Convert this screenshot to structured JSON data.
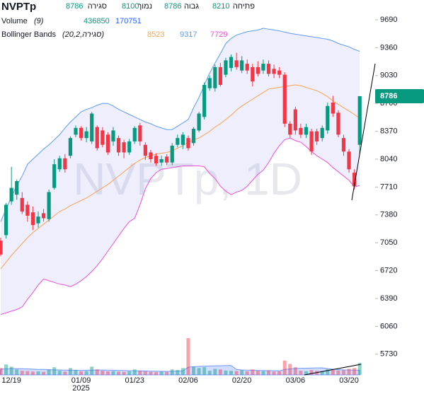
{
  "chart_data": {
    "type": "candlestick",
    "symbol": "NVPTp",
    "watermark": "NVPTp, 1D",
    "ohlc_labels": {
      "open": "פתיחה",
      "high": "גבוה",
      "low": "נמוך",
      "close": "סגירה"
    },
    "categories": [
      null,
      null,
      "12/19",
      null,
      null,
      null,
      null,
      null,
      null,
      null,
      null,
      null,
      null,
      null,
      null,
      "01/09",
      null,
      null,
      null,
      null,
      null,
      null,
      null,
      null,
      null,
      "01/23",
      null,
      null,
      null,
      null,
      null,
      null,
      null,
      null,
      null,
      "02/06",
      null,
      null,
      null,
      null,
      null,
      null,
      null,
      null,
      null,
      "02/20",
      null,
      null,
      null,
      null,
      null,
      null,
      null,
      null,
      null,
      "03/06",
      null,
      null,
      null,
      null,
      null,
      null,
      null,
      null,
      null,
      "03/20",
      null,
      null
    ],
    "x_year": "2025",
    "open": [
      7075,
      7140,
      7540,
      7620,
      7580,
      7500,
      7410,
      7280,
      7400,
      7330,
      7700,
      7920,
      8050,
      8080,
      8330,
      8410,
      8290,
      8250,
      8420,
      8380,
      8330,
      8250,
      8290,
      8240,
      8120,
      8250,
      8440,
      8210,
      8120,
      8080,
      8000,
      8070,
      8000,
      8210,
      8210,
      8290,
      8230,
      8380,
      8540,
      8880,
      8880,
      9130,
      9040,
      9120,
      9210,
      9090,
      9170,
      9130,
      9130,
      9090,
      9170,
      9110,
      9090,
      9040,
      8460,
      8630,
      8410,
      8330,
      8370,
      8370,
      8290,
      8380,
      8710,
      8590,
      8290,
      8130,
      7880,
      8210
    ],
    "high": [
      7110,
      7520,
      7950,
      7800,
      7650,
      7540,
      7480,
      7420,
      7450,
      7680,
      8040,
      8080,
      8100,
      8310,
      8440,
      8430,
      8420,
      8600,
      8440,
      8420,
      8360,
      8420,
      8320,
      8270,
      8280,
      8430,
      8470,
      8240,
      8150,
      8110,
      8080,
      8100,
      8230,
      8330,
      8360,
      8320,
      8420,
      8600,
      8950,
      9030,
      9160,
      9180,
      9240,
      9280,
      9300,
      9260,
      9220,
      9170,
      9200,
      9220,
      9210,
      9160,
      9130,
      9070,
      8490,
      8660,
      8460,
      8460,
      8400,
      8400,
      8440,
      8710,
      8790,
      8620,
      8330,
      8160,
      7920,
      8786
    ],
    "low": [
      6890,
      7100,
      7500,
      7560,
      7390,
      7300,
      7200,
      7230,
      7300,
      7300,
      7680,
      7890,
      7880,
      8050,
      8300,
      8260,
      8240,
      8220,
      8140,
      8180,
      8090,
      8200,
      8080,
      8050,
      8090,
      8220,
      8200,
      8030,
      8000,
      7960,
      7960,
      7970,
      7970,
      8180,
      8160,
      8140,
      8200,
      8360,
      8510,
      8850,
      8840,
      8900,
      9010,
      9080,
      9100,
      9060,
      9050,
      8900,
      9020,
      9050,
      9020,
      9000,
      9000,
      8420,
      8290,
      8330,
      8290,
      8290,
      8090,
      8210,
      8250,
      8340,
      8540,
      8300,
      8080,
      7880,
      7680,
      8100
    ],
    "close": [
      6910,
      7500,
      7700,
      7780,
      7420,
      7370,
      7260,
      7360,
      7340,
      7650,
      7980,
      8050,
      7920,
      8290,
      8410,
      8290,
      8370,
      8580,
      8170,
      8210,
      8120,
      8380,
      8120,
      8120,
      8250,
      8410,
      8250,
      8080,
      8040,
      7990,
      8040,
      8000,
      8200,
      8290,
      8330,
      8170,
      8400,
      8580,
      8920,
      9000,
      9130,
      8920,
      9210,
      9250,
      9130,
      9210,
      9090,
      8960,
      9050,
      9170,
      9050,
      9050,
      9040,
      8460,
      8330,
      8380,
      8330,
      8420,
      8130,
      8250,
      8410,
      8670,
      8580,
      8330,
      8130,
      7920,
      7720,
      8786
    ],
    "up_color": "#089981",
    "down_color": "#f23645",
    "volume": {
      "name": "Volume",
      "params": "(9)",
      "values": [
        250000,
        380000,
        300000,
        200000,
        150000,
        140000,
        120000,
        130000,
        110000,
        200000,
        280000,
        150000,
        120000,
        250000,
        180000,
        130000,
        140000,
        300000,
        200000,
        150000,
        130000,
        140000,
        120000,
        110000,
        130000,
        200000,
        150000,
        130000,
        110000,
        100000,
        120000,
        110000,
        200000,
        180000,
        250000,
        1340000,
        300000,
        250000,
        280000,
        150000,
        220000,
        200000,
        160000,
        150000,
        140000,
        170000,
        130000,
        200000,
        150000,
        140000,
        160000,
        120000,
        130000,
        520000,
        400000,
        280000,
        150000,
        130000,
        180000,
        150000,
        140000,
        200000,
        180000,
        160000,
        170000,
        220000,
        250000,
        436850
      ],
      "ma": [
        210000,
        220000,
        230000,
        230000,
        225000,
        220000,
        210000,
        200000,
        198000,
        190000,
        185000,
        180000,
        175000,
        172000,
        170000,
        168000,
        170000,
        175000,
        180000,
        178000,
        175000,
        170000,
        165000,
        160000,
        155000,
        150000,
        148000,
        145000,
        140000,
        135000,
        132000,
        130000,
        135000,
        140000,
        150000,
        280000,
        300000,
        310000,
        320000,
        325000,
        330000,
        335000,
        340000,
        345000,
        200000,
        180000,
        175000,
        170000,
        165000,
        160000,
        158000,
        155000,
        150000,
        195000,
        220000,
        235000,
        240000,
        245000,
        250000,
        255000,
        258000,
        230000,
        210000,
        195000,
        185000,
        180000,
        175000,
        170751
      ],
      "ma_color": "#2962ff",
      "ylim": [
        0,
        2060000
      ]
    },
    "bollinger": {
      "name": "Bollinger Bands",
      "params": "(20,2,סגירה)",
      "fill": "rgba(120,120,240,0.13)",
      "basis": {
        "color": "#f7a350",
        "values": [
          6740,
          6820,
          6900,
          6970,
          7040,
          7110,
          7170,
          7220,
          7270,
          7320,
          7370,
          7420,
          7450,
          7490,
          7520,
          7550,
          7580,
          7620,
          7660,
          7700,
          7740,
          7790,
          7840,
          7890,
          7940,
          7990,
          8030,
          8060,
          8080,
          8100,
          8110,
          8120,
          8140,
          8170,
          8200,
          8240,
          8270,
          8290,
          8330,
          8370,
          8420,
          8460,
          8510,
          8560,
          8620,
          8670,
          8710,
          8750,
          8790,
          8830,
          8870,
          8880,
          8890,
          8900,
          8910,
          8920,
          8910,
          8890,
          8870,
          8850,
          8820,
          8780,
          8730,
          8690,
          8650,
          8610,
          8570,
          8523
        ]
      },
      "upper": {
        "color": "#5b9cf6",
        "values": [
          7300,
          7450,
          7590,
          7730,
          7840,
          7980,
          8040,
          8100,
          8160,
          8210,
          8270,
          8330,
          8410,
          8480,
          8540,
          8600,
          8630,
          8650,
          8680,
          8700,
          8700,
          8670,
          8630,
          8600,
          8570,
          8540,
          8510,
          8480,
          8460,
          8430,
          8410,
          8390,
          8390,
          8430,
          8470,
          8510,
          8650,
          8770,
          8920,
          9060,
          9180,
          9290,
          9410,
          9470,
          9510,
          9530,
          9550,
          9560,
          9570,
          9590,
          9580,
          9570,
          9560,
          9545,
          9530,
          9520,
          9510,
          9500,
          9490,
          9480,
          9470,
          9460,
          9440,
          9410,
          9390,
          9370,
          9340,
          9317
        ]
      },
      "lower": {
        "color": "#f04fda",
        "values": [
          6200,
          6220,
          6240,
          6260,
          6290,
          6380,
          6460,
          6550,
          6620,
          6600,
          6580,
          6560,
          6550,
          6530,
          6560,
          6600,
          6650,
          6710,
          6780,
          6860,
          6950,
          7040,
          7130,
          7220,
          7300,
          7340,
          7500,
          7690,
          7810,
          7880,
          7920,
          7930,
          7940,
          7950,
          7960,
          7960,
          7960,
          7960,
          7950,
          7870,
          7810,
          7720,
          7660,
          7620,
          7650,
          7670,
          7720,
          7790,
          7860,
          7910,
          8000,
          8110,
          8200,
          8270,
          8290,
          8260,
          8240,
          8190,
          8130,
          8080,
          8040,
          8000,
          7940,
          7890,
          7840,
          7790,
          7710,
          7729
        ]
      }
    },
    "ylim": [
      5485,
      9925
    ],
    "yticks": [
      5730,
      6060,
      6390,
      6720,
      7050,
      7380,
      7710,
      8040,
      8370,
      8700,
      9030,
      9360,
      9690
    ]
  }
}
